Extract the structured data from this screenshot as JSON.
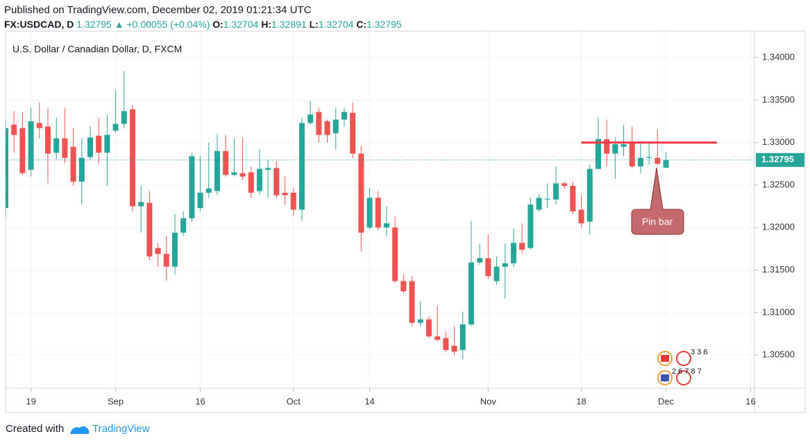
{
  "published": "Published on TradingView.com, December 02, 2019 01:21:34 UTC",
  "symbol": "FX:USDCAD, D",
  "change_arrow": "▲",
  "change": "+0.00055 (+0.04%)",
  "ohlc_labels": [
    "O:",
    "H:",
    "L:",
    "C:"
  ],
  "footer": {
    "created": "Created with",
    "brand": "TradingView"
  },
  "chart_data": {
    "type": "candlestick",
    "title": "U.S. Dollar / Canadian Dollar, D, FXCM",
    "annotation": "Pin bar",
    "event_labels": [
      "3 3 6",
      "2 6 7 8 7"
    ],
    "up_color": "#26a69a",
    "down_color": "#ef5350",
    "lines": [
      {
        "value": 1.33,
        "color": "#f23645"
      }
    ],
    "grid": true,
    "x": [
      0,
      1,
      2,
      3,
      4,
      5,
      6,
      7,
      8,
      9,
      10,
      11,
      12,
      13,
      14,
      15,
      16,
      17,
      18,
      19,
      20,
      21,
      22,
      23,
      24,
      25,
      26,
      27,
      28,
      29,
      30,
      31,
      32,
      33,
      34,
      35,
      36,
      37,
      38,
      39,
      40,
      41,
      42,
      43,
      44,
      45,
      46,
      47,
      48,
      49,
      50,
      51,
      52,
      53,
      54,
      55,
      56,
      57,
      58,
      59,
      60,
      61,
      62,
      63,
      64,
      65,
      66,
      67,
      68,
      69,
      70,
      71,
      72,
      73,
      74,
      75,
      76,
      77,
      78
    ],
    "open": [
      1.3223,
      1.3321,
      1.3317,
      1.3268,
      1.3323,
      1.3319,
      1.3288,
      1.3305,
      1.3295,
      1.3254,
      1.3283,
      1.3308,
      1.3288,
      1.3314,
      1.3322,
      1.3339,
      1.3225,
      1.3229,
      1.3176,
      1.3169,
      1.3154,
      1.3194,
      1.3211,
      1.3223,
      1.3241,
      1.3243,
      1.329,
      1.3262,
      1.3264,
      1.3265,
      1.3243,
      1.3268,
      1.327,
      1.3241,
      1.3241,
      1.3221,
      1.3323,
      1.3336,
      1.3325,
      1.3311,
      1.3327,
      1.3335,
      1.3287,
      1.32,
      1.3235,
      1.32,
      1.32,
      1.3137,
      1.3137,
      1.3088,
      1.3092,
      1.3072,
      1.307,
      1.3061,
      1.3056,
      1.3086,
      1.3159,
      1.3164,
      1.3137,
      1.3154,
      1.3158,
      1.3182,
      1.3176,
      1.3221,
      1.3233,
      1.3233,
      1.3252,
      1.3249,
      1.3221,
      1.3207,
      1.3269,
      1.3304,
      1.3287,
      1.3295,
      1.33,
      1.3272,
      1.3282,
      1.3282,
      1.32704
    ],
    "high": [
      1.3327,
      1.3337,
      1.3336,
      1.3341,
      1.3347,
      1.334,
      1.3329,
      1.334,
      1.3317,
      1.3305,
      1.3319,
      1.3329,
      1.3333,
      1.3362,
      1.3384,
      1.3344,
      1.3249,
      1.3243,
      1.3182,
      1.319,
      1.3216,
      1.3219,
      1.3288,
      1.3284,
      1.33,
      1.331,
      1.3309,
      1.3305,
      1.3306,
      1.3272,
      1.3292,
      1.328,
      1.3278,
      1.326,
      1.3247,
      1.3329,
      1.3349,
      1.3341,
      1.3327,
      1.3341,
      1.3341,
      1.3347,
      1.3296,
      1.3247,
      1.3243,
      1.3225,
      1.3213,
      1.3145,
      1.3143,
      1.3113,
      1.3096,
      1.3108,
      1.3078,
      1.3084,
      1.3101,
      1.3208,
      1.3181,
      1.3192,
      1.3166,
      1.3181,
      1.3199,
      1.3205,
      1.3235,
      1.3239,
      1.3252,
      1.3272,
      1.3254,
      1.3254,
      1.3238,
      1.3274,
      1.3329,
      1.3327,
      1.3306,
      1.3321,
      1.3319,
      1.33,
      1.33,
      1.3315,
      1.32891
    ],
    "low": [
      1.3212,
      1.3288,
      1.3262,
      1.326,
      1.3305,
      1.3252,
      1.328,
      1.3276,
      1.3249,
      1.3227,
      1.328,
      1.3274,
      1.3249,
      1.3312,
      1.3317,
      1.3219,
      1.3194,
      1.3162,
      1.3154,
      1.3137,
      1.3145,
      1.319,
      1.3207,
      1.3219,
      1.3235,
      1.3238,
      1.326,
      1.326,
      1.3256,
      1.3235,
      1.3239,
      1.3235,
      1.3235,
      1.3227,
      1.3213,
      1.3208,
      1.3321,
      1.33,
      1.33,
      1.3292,
      1.3319,
      1.3282,
      1.3172,
      1.3198,
      1.3197,
      1.319,
      1.3135,
      1.3123,
      1.3084,
      1.3084,
      1.307,
      1.3066,
      1.3054,
      1.305,
      1.3045,
      1.3084,
      1.3156,
      1.314,
      1.3133,
      1.3117,
      1.3154,
      1.317,
      1.3174,
      1.3219,
      1.3223,
      1.3227,
      1.3246,
      1.3216,
      1.32,
      1.3192,
      1.3268,
      1.3272,
      1.3257,
      1.3284,
      1.327,
      1.3264,
      1.3274,
      1.3274,
      1.32704
    ],
    "close": [
      1.3317,
      1.3309,
      1.3264,
      1.3325,
      1.3317,
      1.3287,
      1.3305,
      1.3282,
      1.3254,
      1.3282,
      1.3306,
      1.3288,
      1.3309,
      1.3322,
      1.3337,
      1.3225,
      1.323,
      1.3166,
      1.3169,
      1.3154,
      1.3194,
      1.3211,
      1.3284,
      1.3241,
      1.3246,
      1.329,
      1.3262,
      1.3265,
      1.326,
      1.3241,
      1.3269,
      1.327,
      1.3238,
      1.3238,
      1.3221,
      1.3323,
      1.3333,
      1.3309,
      1.3309,
      1.3327,
      1.3336,
      1.3287,
      1.3194,
      1.3235,
      1.32,
      1.3205,
      1.3137,
      1.3125,
      1.3088,
      1.3092,
      1.3072,
      1.3068,
      1.3056,
      1.3054,
      1.3086,
      1.3159,
      1.3164,
      1.3143,
      1.3154,
      1.3158,
      1.3182,
      1.3174,
      1.3227,
      1.3235,
      1.3234,
      1.3252,
      1.3249,
      1.3219,
      1.3205,
      1.3269,
      1.3304,
      1.3287,
      1.3298,
      1.3298,
      1.3272,
      1.3282,
      1.3283,
      1.3275,
      1.32795
    ],
    "xlim": [
      0,
      88.45
    ],
    "xticks": [
      {
        "value": 3,
        "label": "19"
      },
      {
        "value": 13,
        "label": "Sep"
      },
      {
        "value": 23,
        "label": "16"
      },
      {
        "value": 34,
        "label": "Oct"
      },
      {
        "value": 43,
        "label": "14"
      },
      {
        "value": 57,
        "label": "Nov"
      },
      {
        "value": 68,
        "label": "18"
      },
      {
        "value": 78,
        "label": "Dec"
      },
      {
        "value": 88,
        "label": "16"
      }
    ],
    "ylim": [
      1.3011,
      1.3431
    ],
    "yticks": [
      {
        "value": 1.305,
        "label": "1.30500"
      },
      {
        "value": 1.31,
        "label": "1.31000"
      },
      {
        "value": 1.315,
        "label": "1.31500"
      },
      {
        "value": 1.32,
        "label": "1.32000"
      },
      {
        "value": 1.325,
        "label": "1.32500"
      },
      {
        "value": 1.33,
        "label": "1.33000"
      },
      {
        "value": 1.335,
        "label": "1.33500"
      },
      {
        "value": 1.34,
        "label": "1.34000"
      }
    ]
  }
}
